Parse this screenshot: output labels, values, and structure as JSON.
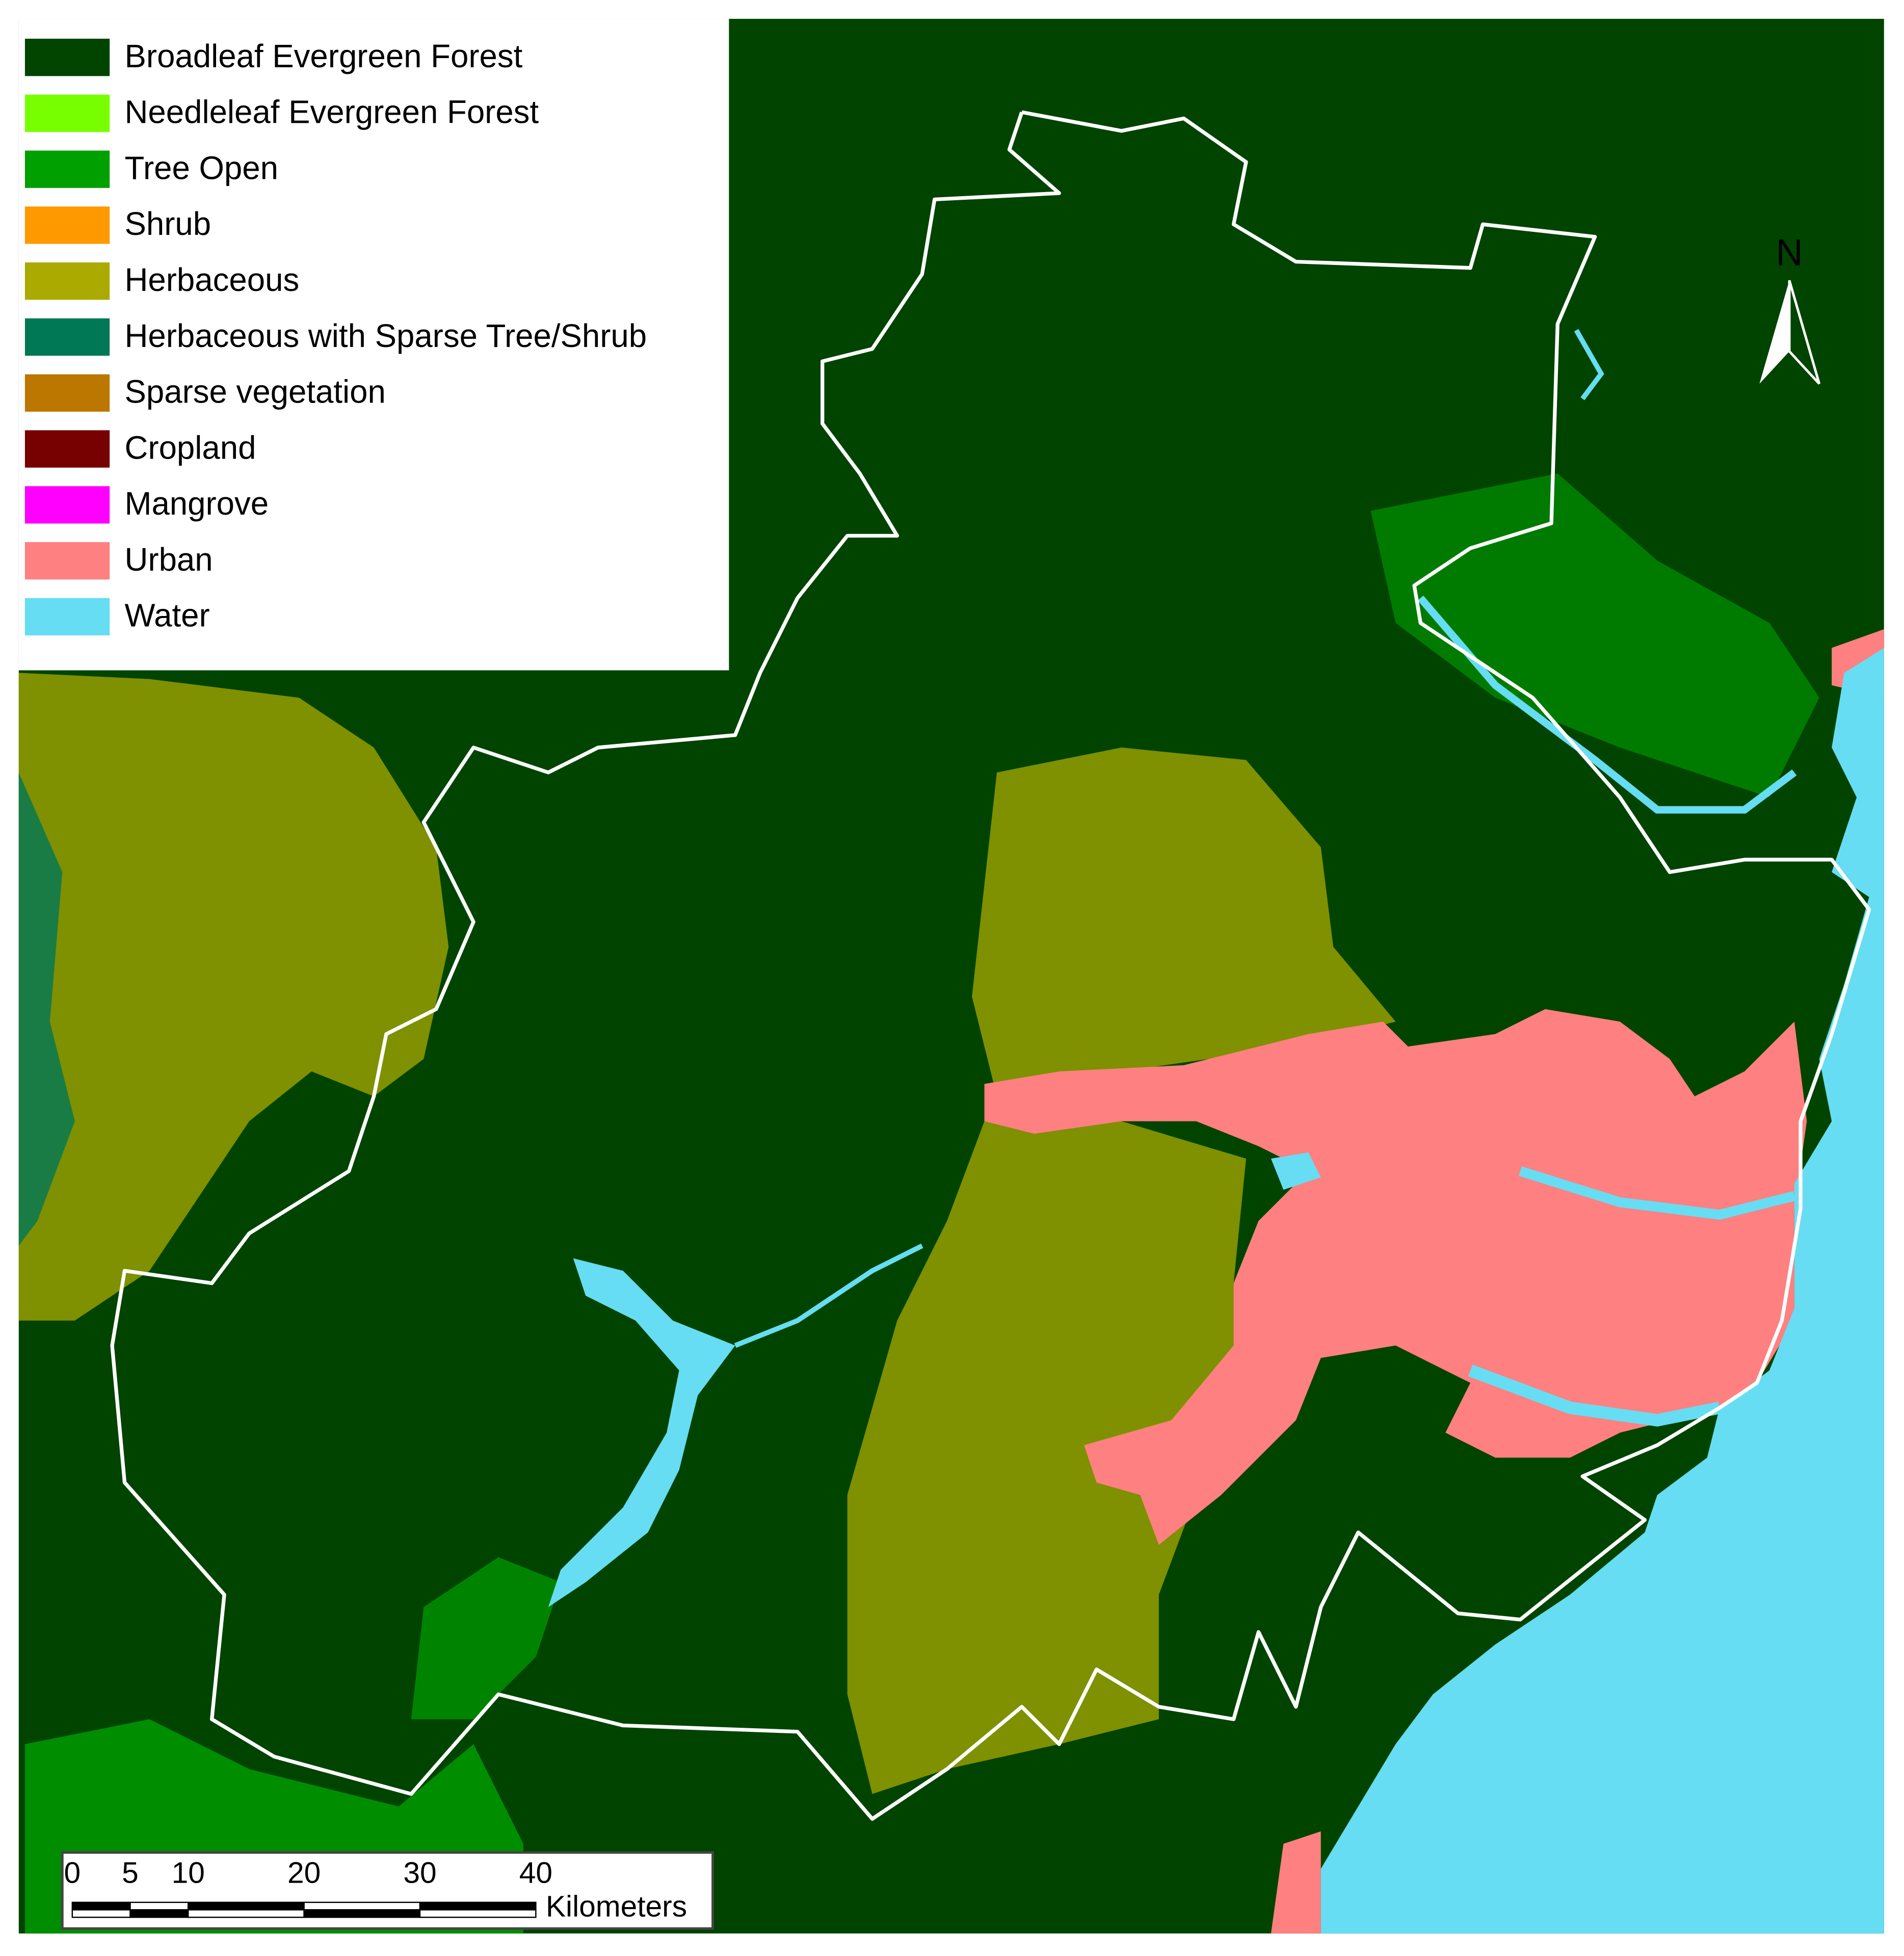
{
  "legend": [
    {
      "label": "Broadleaf Evergreen Forest",
      "color": "#004400"
    },
    {
      "label": "Needleleaf Evergreen Forest",
      "color": "#77ff00"
    },
    {
      "label": "Tree Open",
      "color": "#00a000"
    },
    {
      "label": "Shrub",
      "color": "#ff9900"
    },
    {
      "label": "Herbaceous",
      "color": "#aaaa00"
    },
    {
      "label": "Herbaceous with Sparse Tree/Shrub",
      "color": "#007755"
    },
    {
      "label": "Sparse vegetation",
      "color": "#bb7700"
    },
    {
      "label": "Cropland",
      "color": "#770000"
    },
    {
      "label": "Mangrove",
      "color": "#ff00ff"
    },
    {
      "label": "Urban",
      "color": "#ff8080"
    },
    {
      "label": "Water",
      "color": "#66ddf2"
    }
  ],
  "north_arrow": "N",
  "scale_bar": {
    "ticks": [
      0,
      5,
      10,
      20,
      30,
      40
    ],
    "unit": "Kilometers"
  }
}
